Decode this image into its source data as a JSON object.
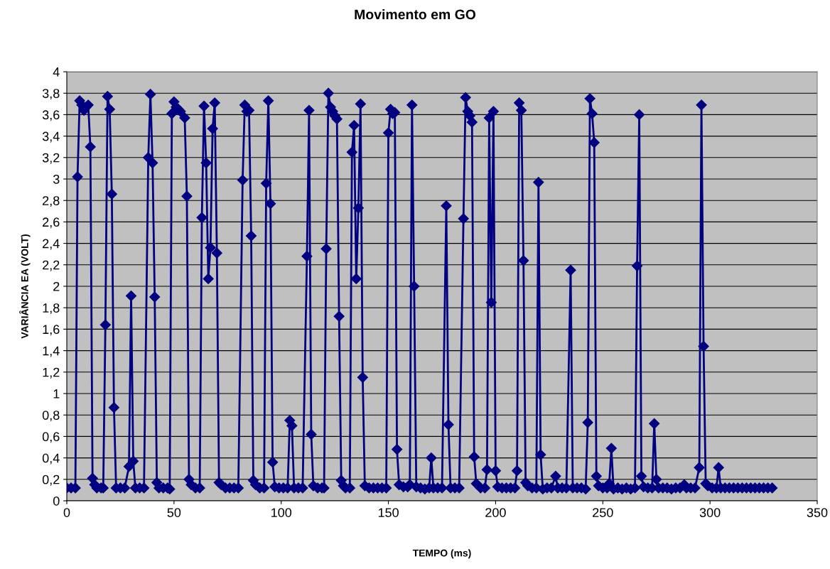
{
  "chart_data": {
    "type": "line",
    "title": "Movimento em GO",
    "xlabel": "TEMPO (ms)",
    "ylabel": "VARIÂNCIA EA (VOLT)",
    "xlim": [
      0,
      350
    ],
    "xticks": [
      0,
      50,
      100,
      150,
      200,
      250,
      300,
      350
    ],
    "ylim": [
      0,
      4
    ],
    "yticks": [
      0,
      {
        "value": 0.2,
        "label": "0,2"
      },
      {
        "value": 0.4,
        "label": "0,4"
      },
      {
        "value": 0.6,
        "label": "0,6"
      },
      {
        "value": 0.8,
        "label": "0,8"
      },
      1,
      {
        "value": 1.2,
        "label": "1,2"
      },
      {
        "value": 1.4,
        "label": "1,4"
      },
      {
        "value": 1.6,
        "label": "1,6"
      },
      {
        "value": 1.8,
        "label": "1,8"
      },
      2,
      {
        "value": 2.2,
        "label": "2,2"
      },
      {
        "value": 2.4,
        "label": "2,4"
      },
      {
        "value": 2.6,
        "label": "2,6"
      },
      {
        "value": 2.8,
        "label": "2,8"
      },
      3,
      {
        "value": 3.2,
        "label": "3,2"
      },
      {
        "value": 3.4,
        "label": "3,4"
      },
      {
        "value": 3.6,
        "label": "3,6"
      },
      {
        "value": 3.8,
        "label": "3,8"
      },
      4
    ],
    "grid": "y",
    "marker": "diamond",
    "line_style": "solid",
    "series": [
      {
        "color": "#000080",
        "x": [
          0,
          2,
          4,
          5,
          6,
          7,
          8,
          9,
          10,
          11,
          12,
          13,
          14,
          16,
          17,
          18,
          19,
          20,
          21,
          22,
          23,
          25,
          27,
          29,
          30,
          31,
          32,
          34,
          36,
          38,
          39,
          40,
          41,
          42,
          43,
          45,
          47,
          48,
          49,
          50,
          51,
          52,
          53,
          55,
          56,
          57,
          58,
          60,
          62,
          63,
          64,
          65,
          66,
          67,
          68,
          69,
          70,
          71,
          72,
          74,
          76,
          78,
          80,
          82,
          83,
          84,
          85,
          86,
          87,
          88,
          90,
          92,
          93,
          94,
          95,
          96,
          97,
          99,
          101,
          103,
          104,
          105,
          106,
          108,
          110,
          112,
          113,
          114,
          115,
          117,
          119,
          120,
          121,
          122,
          123,
          124,
          125,
          126,
          127,
          128,
          129,
          130,
          132,
          133,
          134,
          135,
          136,
          137,
          138,
          139,
          141,
          143,
          145,
          147,
          149,
          150,
          151,
          152,
          153,
          154,
          155,
          157,
          159,
          160,
          161,
          162,
          163,
          165,
          167,
          169,
          170,
          171,
          173,
          175,
          177,
          178,
          179,
          181,
          183,
          185,
          186,
          187,
          188,
          189,
          190,
          191,
          193,
          195,
          196,
          197,
          198,
          199,
          200,
          201,
          203,
          205,
          207,
          209,
          210,
          211,
          212,
          213,
          214,
          215,
          217,
          219,
          220,
          221,
          222,
          224,
          226,
          228,
          229,
          231,
          233,
          235,
          236,
          238,
          240,
          242,
          243,
          244,
          245,
          246,
          247,
          248,
          250,
          252,
          253,
          254,
          255,
          257,
          259,
          261,
          263,
          265,
          266,
          267,
          268,
          269,
          271,
          273,
          274,
          275,
          276,
          278,
          280,
          282,
          284,
          286,
          288,
          289,
          291,
          293,
          295,
          296,
          297,
          298,
          299,
          301,
          303,
          304,
          305,
          307,
          309,
          311,
          313,
          315,
          317,
          319,
          321,
          323,
          325,
          327,
          329
        ],
        "values": [
          0.12,
          0.12,
          0.12,
          3.02,
          3.73,
          3.69,
          3.64,
          3.67,
          3.69,
          3.3,
          0.21,
          0.15,
          0.12,
          0.12,
          0.12,
          1.64,
          3.77,
          3.65,
          2.86,
          0.87,
          0.12,
          0.12,
          0.12,
          0.32,
          1.91,
          0.37,
          0.12,
          0.12,
          0.12,
          3.2,
          3.79,
          3.15,
          1.9,
          0.17,
          0.12,
          0.12,
          0.12,
          0.11,
          3.61,
          3.72,
          3.67,
          3.65,
          3.63,
          3.57,
          2.84,
          0.2,
          0.15,
          0.12,
          0.12,
          2.64,
          3.68,
          3.15,
          2.07,
          2.36,
          3.47,
          3.71,
          2.31,
          0.17,
          0.15,
          0.12,
          0.12,
          0.12,
          0.12,
          2.99,
          3.69,
          3.63,
          3.64,
          2.47,
          0.19,
          0.15,
          0.12,
          0.12,
          2.96,
          3.73,
          2.77,
          0.36,
          0.13,
          0.12,
          0.12,
          0.12,
          0.75,
          0.7,
          0.12,
          0.12,
          0.12,
          2.28,
          3.64,
          0.62,
          0.14,
          0.12,
          0.12,
          0.12,
          2.35,
          3.8,
          3.67,
          3.63,
          3.59,
          3.56,
          1.72,
          0.19,
          0.14,
          0.12,
          0.12,
          3.25,
          3.5,
          2.07,
          2.73,
          3.7,
          1.15,
          0.14,
          0.12,
          0.12,
          0.12,
          0.12,
          0.12,
          3.43,
          3.65,
          3.61,
          3.62,
          0.48,
          0.15,
          0.13,
          0.13,
          0.15,
          3.69,
          2.0,
          0.13,
          0.12,
          0.11,
          0.12,
          0.4,
          0.12,
          0.12,
          0.12,
          2.75,
          0.71,
          0.12,
          0.12,
          0.12,
          2.63,
          3.76,
          3.63,
          3.59,
          3.53,
          0.41,
          0.16,
          0.12,
          0.12,
          0.29,
          3.57,
          1.85,
          3.63,
          0.28,
          0.13,
          0.12,
          0.12,
          0.12,
          0.12,
          0.28,
          3.71,
          3.64,
          2.24,
          0.17,
          0.14,
          0.12,
          0.12,
          2.97,
          0.43,
          0.11,
          0.12,
          0.12,
          0.23,
          0.12,
          0.12,
          0.12,
          2.15,
          0.12,
          0.12,
          0.12,
          0.11,
          0.73,
          3.75,
          3.61,
          3.34,
          0.23,
          0.14,
          0.12,
          0.12,
          0.16,
          0.49,
          0.11,
          0.12,
          0.11,
          0.12,
          0.11,
          0.12,
          2.19,
          3.6,
          0.23,
          0.13,
          0.12,
          0.12,
          0.72,
          0.2,
          0.12,
          0.12,
          0.12,
          0.11,
          0.12,
          0.12,
          0.15,
          0.12,
          0.12,
          0.12,
          0.31,
          3.69,
          1.44,
          0.16,
          0.14,
          0.12,
          0.12,
          0.31,
          0.12,
          0.12,
          0.12,
          0.12,
          0.12,
          0.12,
          0.12,
          0.12,
          0.12,
          0.12,
          0.12,
          0.12,
          0.12
        ]
      }
    ]
  }
}
